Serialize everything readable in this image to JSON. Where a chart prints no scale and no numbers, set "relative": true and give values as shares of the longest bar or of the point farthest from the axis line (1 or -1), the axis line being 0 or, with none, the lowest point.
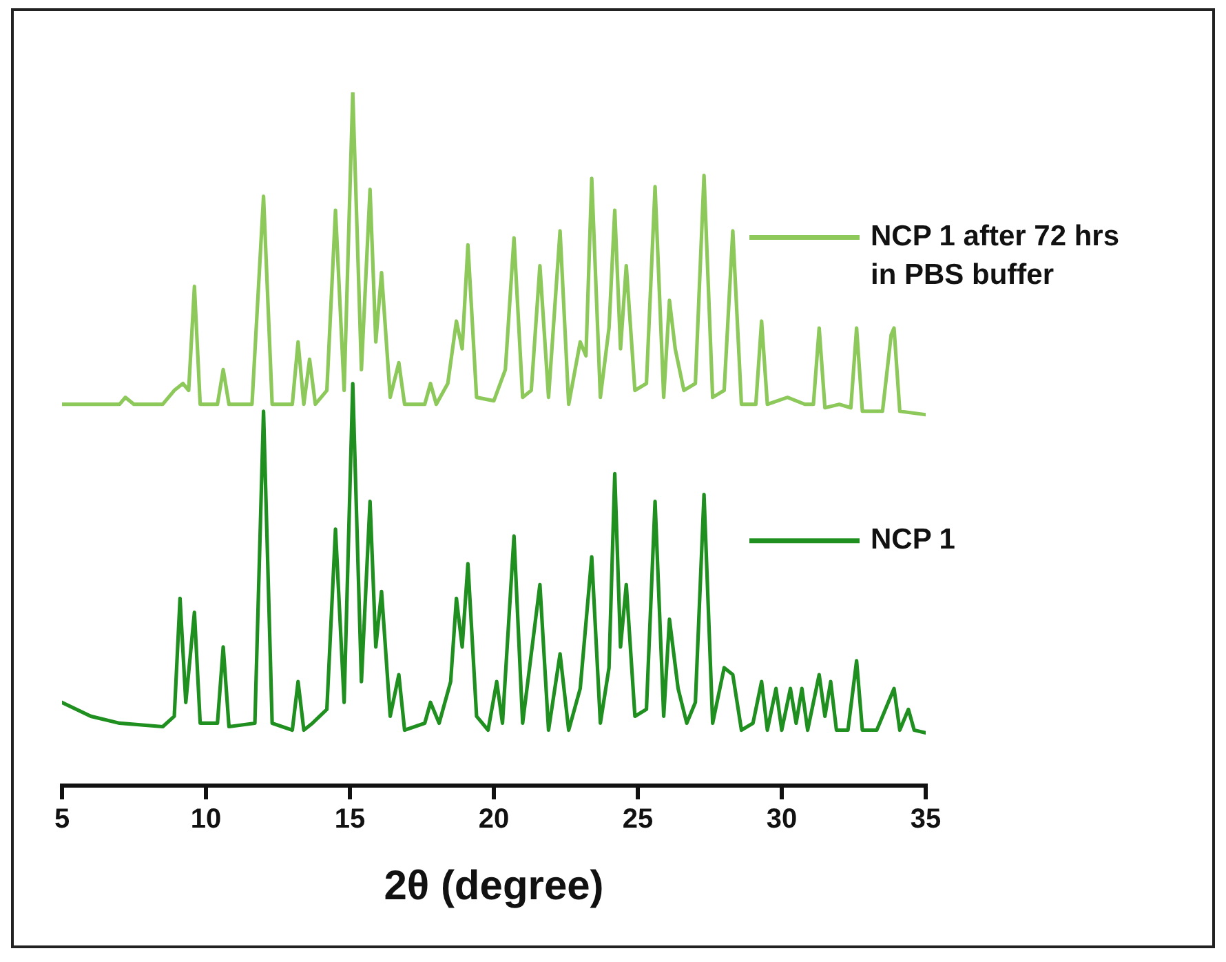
{
  "chart_data": {
    "type": "line",
    "relative": true,
    "xlabel": "2θ (degree)",
    "xlim": [
      5,
      35
    ],
    "xticks": [
      5,
      10,
      15,
      20,
      25,
      30,
      35
    ],
    "grid": false,
    "legend": "right",
    "marker": "none",
    "line_style": "solid",
    "series": [
      {
        "name": "NCP 1 after 72 hrs in PBS buffer",
        "color": "#8cc85a",
        "x": [
          5,
          7,
          7.2,
          7.5,
          8.5,
          8.9,
          9.2,
          9.4,
          9.6,
          9.8,
          10.4,
          10.6,
          10.8,
          11.6,
          12.0,
          12.3,
          13.0,
          13.2,
          13.4,
          13.6,
          13.8,
          14.2,
          14.5,
          14.8,
          15.1,
          15.4,
          15.7,
          15.9,
          16.1,
          16.4,
          16.7,
          16.9,
          17.6,
          17.8,
          18.0,
          18.4,
          18.7,
          18.9,
          19.1,
          19.4,
          20.0,
          20.4,
          20.7,
          21.0,
          21.3,
          21.6,
          21.9,
          22.3,
          22.6,
          23.0,
          23.2,
          23.4,
          23.7,
          24.0,
          24.2,
          24.4,
          24.6,
          24.9,
          25.3,
          25.6,
          25.9,
          26.1,
          26.3,
          26.6,
          27.0,
          27.3,
          27.6,
          28.0,
          28.3,
          28.6,
          29.1,
          29.3,
          29.5,
          30.2,
          30.8,
          31.1,
          31.3,
          31.5,
          32.0,
          32.4,
          32.6,
          32.8,
          33.5,
          33.8,
          33.9,
          34.1,
          35
        ],
        "values": [
          0.55,
          0.55,
          0.56,
          0.55,
          0.55,
          0.57,
          0.58,
          0.57,
          0.72,
          0.55,
          0.55,
          0.6,
          0.55,
          0.55,
          0.85,
          0.55,
          0.55,
          0.64,
          0.55,
          0.615,
          0.55,
          0.57,
          0.83,
          0.57,
          1.0,
          0.6,
          0.86,
          0.64,
          0.74,
          0.56,
          0.61,
          0.55,
          0.55,
          0.58,
          0.55,
          0.58,
          0.67,
          0.63,
          0.78,
          0.56,
          0.555,
          0.6,
          0.79,
          0.56,
          0.57,
          0.75,
          0.56,
          0.8,
          0.55,
          0.64,
          0.62,
          0.876,
          0.56,
          0.66,
          0.83,
          0.63,
          0.75,
          0.57,
          0.58,
          0.864,
          0.56,
          0.7,
          0.63,
          0.57,
          0.58,
          0.88,
          0.56,
          0.57,
          0.8,
          0.55,
          0.55,
          0.67,
          0.55,
          0.56,
          0.55,
          0.55,
          0.66,
          0.545,
          0.55,
          0.545,
          0.66,
          0.54,
          0.54,
          0.65,
          0.66,
          0.54,
          0.535
        ]
      },
      {
        "name": "NCP 1",
        "color": "#1f8f1f",
        "x": [
          5,
          6,
          7,
          8.5,
          8.9,
          9.1,
          9.3,
          9.6,
          9.8,
          10.4,
          10.6,
          10.8,
          11.7,
          12.0,
          12.3,
          13.0,
          13.2,
          13.4,
          13.7,
          14.2,
          14.5,
          14.8,
          15.1,
          15.4,
          15.7,
          15.9,
          16.1,
          16.4,
          16.7,
          16.9,
          17.6,
          17.8,
          18.1,
          18.5,
          18.7,
          18.9,
          19.1,
          19.4,
          19.8,
          20.1,
          20.3,
          20.7,
          21.0,
          21.6,
          21.9,
          22.3,
          22.6,
          23.0,
          23.4,
          23.7,
          24.0,
          24.2,
          24.4,
          24.6,
          24.9,
          25.3,
          25.6,
          25.9,
          26.1,
          26.4,
          26.7,
          27.0,
          27.3,
          27.6,
          28.0,
          28.3,
          28.6,
          29.0,
          29.3,
          29.5,
          29.8,
          30.0,
          30.3,
          30.5,
          30.7,
          30.9,
          31.3,
          31.5,
          31.7,
          31.9,
          32.3,
          32.6,
          32.8,
          33.3,
          33.5,
          33.9,
          34.1,
          34.4,
          34.6,
          35
        ],
        "values": [
          0.12,
          0.1,
          0.09,
          0.085,
          0.1,
          0.27,
          0.12,
          0.25,
          0.09,
          0.09,
          0.2,
          0.085,
          0.09,
          0.54,
          0.09,
          0.08,
          0.15,
          0.08,
          0.09,
          0.11,
          0.37,
          0.12,
          0.58,
          0.15,
          0.41,
          0.2,
          0.28,
          0.1,
          0.16,
          0.08,
          0.09,
          0.12,
          0.09,
          0.15,
          0.27,
          0.2,
          0.32,
          0.1,
          0.08,
          0.15,
          0.09,
          0.36,
          0.09,
          0.29,
          0.08,
          0.19,
          0.08,
          0.14,
          0.33,
          0.09,
          0.17,
          0.45,
          0.2,
          0.29,
          0.1,
          0.11,
          0.41,
          0.1,
          0.24,
          0.14,
          0.09,
          0.12,
          0.42,
          0.09,
          0.17,
          0.16,
          0.08,
          0.09,
          0.15,
          0.08,
          0.14,
          0.08,
          0.14,
          0.09,
          0.14,
          0.08,
          0.16,
          0.1,
          0.15,
          0.08,
          0.08,
          0.18,
          0.08,
          0.08,
          0.1,
          0.14,
          0.08,
          0.11,
          0.08,
          0.076
        ]
      }
    ]
  }
}
